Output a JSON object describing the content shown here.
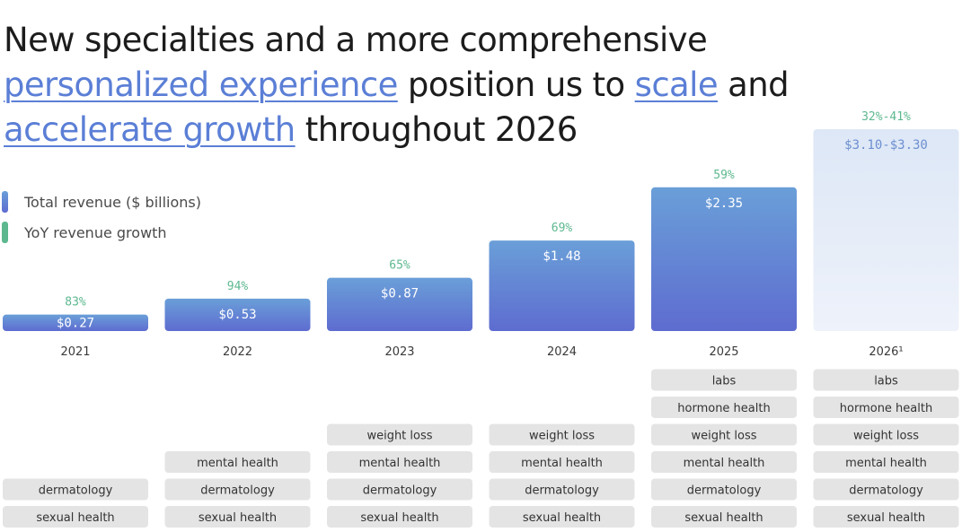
{
  "title": {
    "segments": [
      {
        "text": "New specialties and a more comprehensive ",
        "highlight": false
      },
      {
        "text": "personalized experience",
        "highlight": true
      },
      {
        "text": " position us to ",
        "highlight": false
      },
      {
        "text": "scale",
        "highlight": true
      },
      {
        "text": " and ",
        "highlight": false
      },
      {
        "text": "accelerate growth",
        "highlight": true
      },
      {
        "text": " throughout 2026",
        "highlight": false
      }
    ]
  },
  "legend": {
    "revenue_label": "Total revenue ($ billions)",
    "growth_label": "YoY revenue growth"
  },
  "colors": {
    "bar_top": "#6a9fd8",
    "bar_bottom": "#5e6cd0",
    "projected_bar_top": "#dde7f6",
    "projected_bar_bottom": "#eef2fa",
    "growth_text": "#5db88f",
    "bar_label": "#ffffff",
    "projected_label": "#6d8fd1",
    "tag_fill": "#e4e4e4",
    "tag_text": "#333333",
    "title_highlight": "#5b7fd6"
  },
  "chart_data": {
    "type": "bar",
    "categories": [
      "2021",
      "2022",
      "2023",
      "2024",
      "2025",
      "2026¹"
    ],
    "values": [
      0.27,
      0.53,
      0.87,
      1.48,
      2.35,
      3.3
    ],
    "value_labels": [
      "$0.27",
      "$0.53",
      "$0.87",
      "$1.48",
      "$2.35",
      "$3.10-$3.30"
    ],
    "growth_labels": [
      "83%",
      "94%",
      "65%",
      "69%",
      "59%",
      "32%-41%"
    ],
    "projected": [
      false,
      false,
      false,
      false,
      false,
      true
    ],
    "ylabel": "",
    "ylim": [
      0,
      3.3
    ],
    "grid": false,
    "legend_position": "top-left",
    "specialties": [
      [
        "dermatology",
        "sexual health"
      ],
      [
        "mental health",
        "dermatology",
        "sexual health"
      ],
      [
        "weight loss",
        "mental health",
        "dermatology",
        "sexual health"
      ],
      [
        "weight loss",
        "mental health",
        "dermatology",
        "sexual health"
      ],
      [
        "labs",
        "hormone health",
        "weight loss",
        "mental health",
        "dermatology",
        "sexual health"
      ],
      [
        "labs",
        "hormone health",
        "weight loss",
        "mental health",
        "dermatology",
        "sexual health"
      ]
    ]
  }
}
